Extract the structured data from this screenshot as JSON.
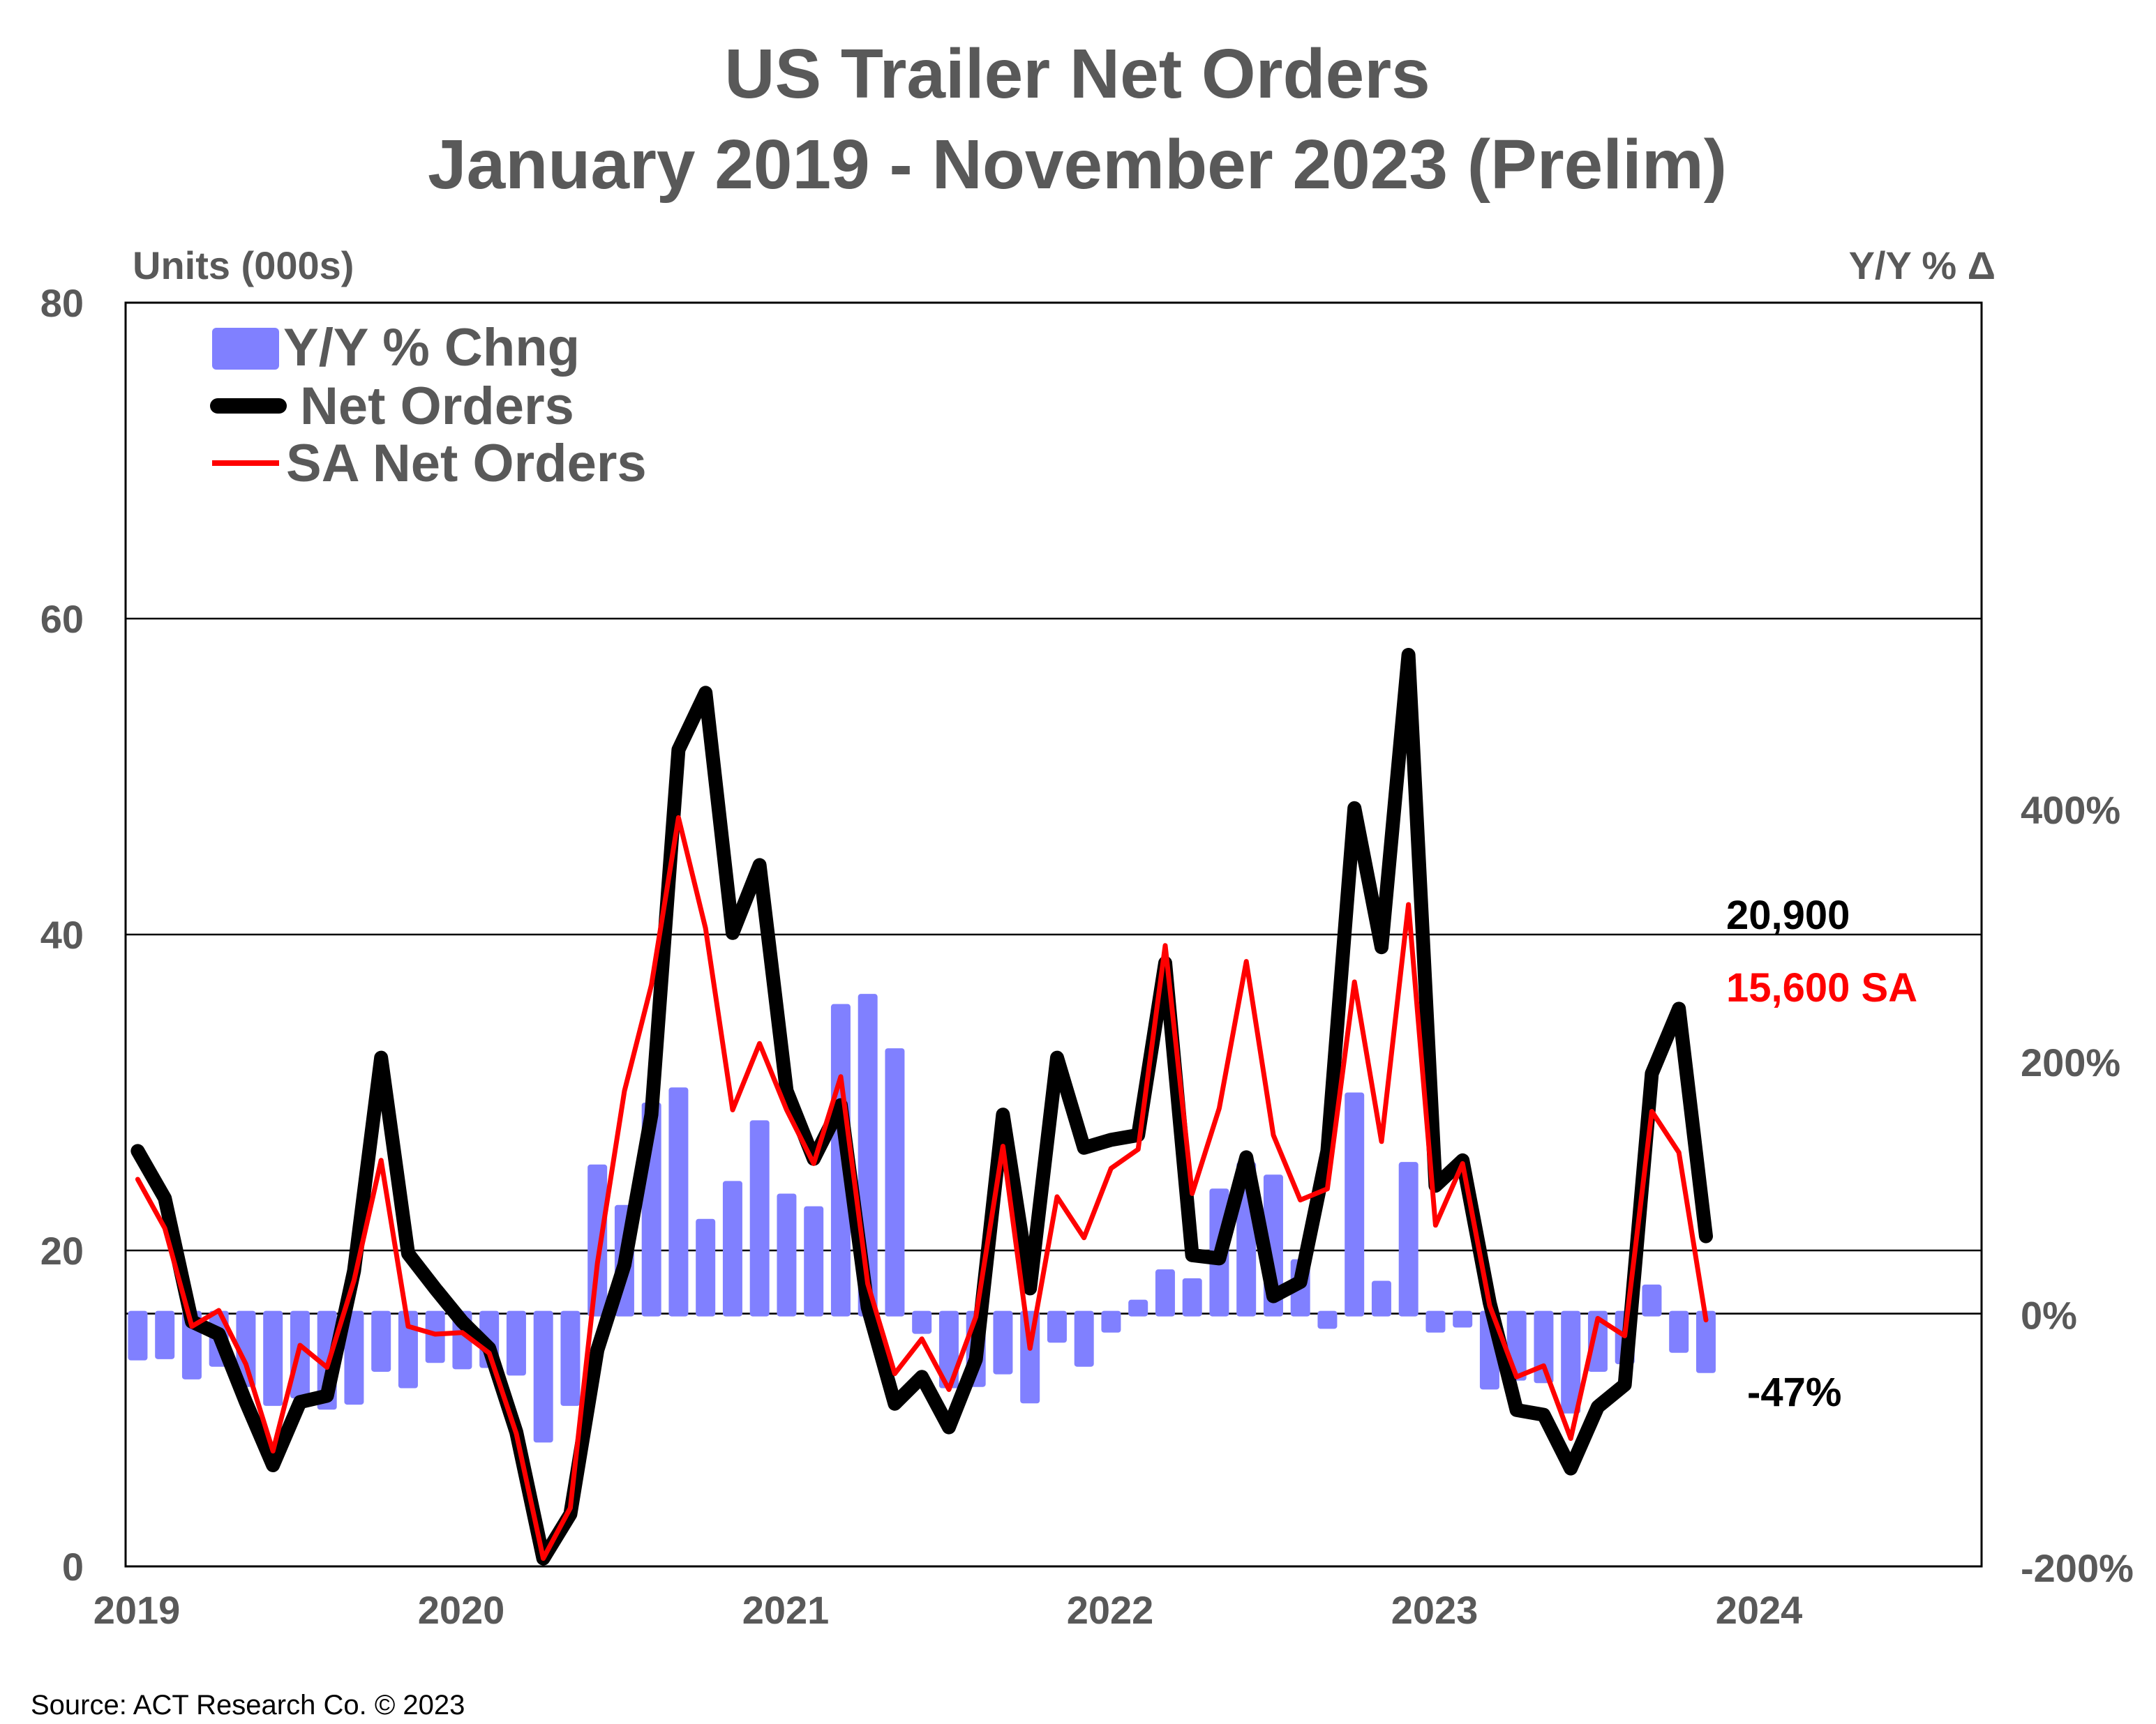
{
  "chart_data": {
    "type": "line+bar",
    "title": "US Trailer Net Orders",
    "subtitle": "January 2019 - November 2023 (Prelim)",
    "ylabel_left": "Units (000s)",
    "ylabel_right": "Y/Y % Δ",
    "ylim_left": [
      0,
      80
    ],
    "yticks_left": [
      "80",
      "60",
      "40",
      "20",
      "0"
    ],
    "ylim_right": [
      -200,
      800
    ],
    "yticks_right": [
      "400%",
      "200%",
      "0%",
      "-200%"
    ],
    "xticks": [
      "2019",
      "2020",
      "2021",
      "2022",
      "2023",
      "2024"
    ],
    "x_start": "2019-01",
    "x_end": "2023-11",
    "grid": "horizontal",
    "legend_placement": "top-left",
    "source": "Source: ACT Research Co. © 2023",
    "annotations": {
      "net_orders_last": "20,900",
      "sa_last": "15,600 SA",
      "yoy_last": "-47%"
    },
    "series": [
      {
        "name": "Y/Y % Chng",
        "type": "bar",
        "axis": "right",
        "color": "#8080ff",
        "values": [
          -37,
          -36,
          -52,
          -42,
          -58,
          -73,
          -67,
          -76,
          -72,
          -46,
          -59,
          -39,
          -44,
          -43,
          -49,
          -102,
          -73,
          118,
          86,
          167,
          179,
          75,
          105,
          153,
          95,
          85,
          245,
          253,
          210,
          -16,
          -59,
          -58,
          -48,
          -71,
          -23,
          -42,
          -15,
          11,
          35,
          28,
          99,
          120,
          110,
          43,
          -12,
          175,
          26,
          120,
          -15,
          -11,
          -60,
          -53,
          -55,
          -79,
          -46,
          -40,
          23,
          -31,
          -47
        ]
      },
      {
        "name": "Net Orders",
        "type": "line",
        "axis": "left",
        "color": "#000000",
        "values": [
          26.3,
          23.3,
          15.5,
          14.7,
          10.4,
          6.4,
          10.4,
          10.8,
          18.7,
          32.2,
          19.8,
          17.6,
          15.5,
          13.8,
          8.5,
          0.5,
          3.3,
          13.7,
          19.1,
          28.6,
          51.7,
          55.3,
          40.1,
          44.4,
          30.1,
          25.8,
          29.2,
          16.4,
          10.3,
          12.0,
          8.8,
          13.1,
          28.6,
          17.6,
          32.2,
          26.5,
          27.0,
          27.3,
          38.2,
          19.7,
          19.5,
          25.9,
          17.1,
          18.0,
          26.3,
          48.0,
          39.2,
          57.7,
          24.1,
          25.7,
          16.7,
          9.9,
          9.6,
          6.2,
          10.1,
          11.5,
          31.2,
          35.3,
          20.9
        ]
      },
      {
        "name": "SA Net Orders",
        "type": "line",
        "axis": "left",
        "color": "#ff0000",
        "values": [
          24.5,
          21.4,
          15.2,
          16.2,
          12.8,
          7.3,
          14.0,
          12.6,
          18.1,
          25.7,
          15.2,
          14.7,
          14.8,
          13.5,
          8.4,
          0.5,
          3.7,
          19.2,
          30.1,
          36.8,
          47.4,
          40.4,
          28.9,
          33.1,
          28.9,
          25.5,
          31.0,
          17.9,
          12.2,
          14.4,
          11.2,
          15.8,
          26.6,
          13.8,
          23.4,
          20.8,
          25.2,
          26.4,
          39.3,
          23.6,
          29.0,
          38.3,
          27.3,
          23.2,
          23.9,
          37.0,
          26.9,
          41.9,
          21.6,
          25.5,
          16.5,
          12.0,
          12.7,
          8.1,
          15.7,
          14.6,
          28.8,
          26.2,
          15.6
        ]
      }
    ]
  }
}
